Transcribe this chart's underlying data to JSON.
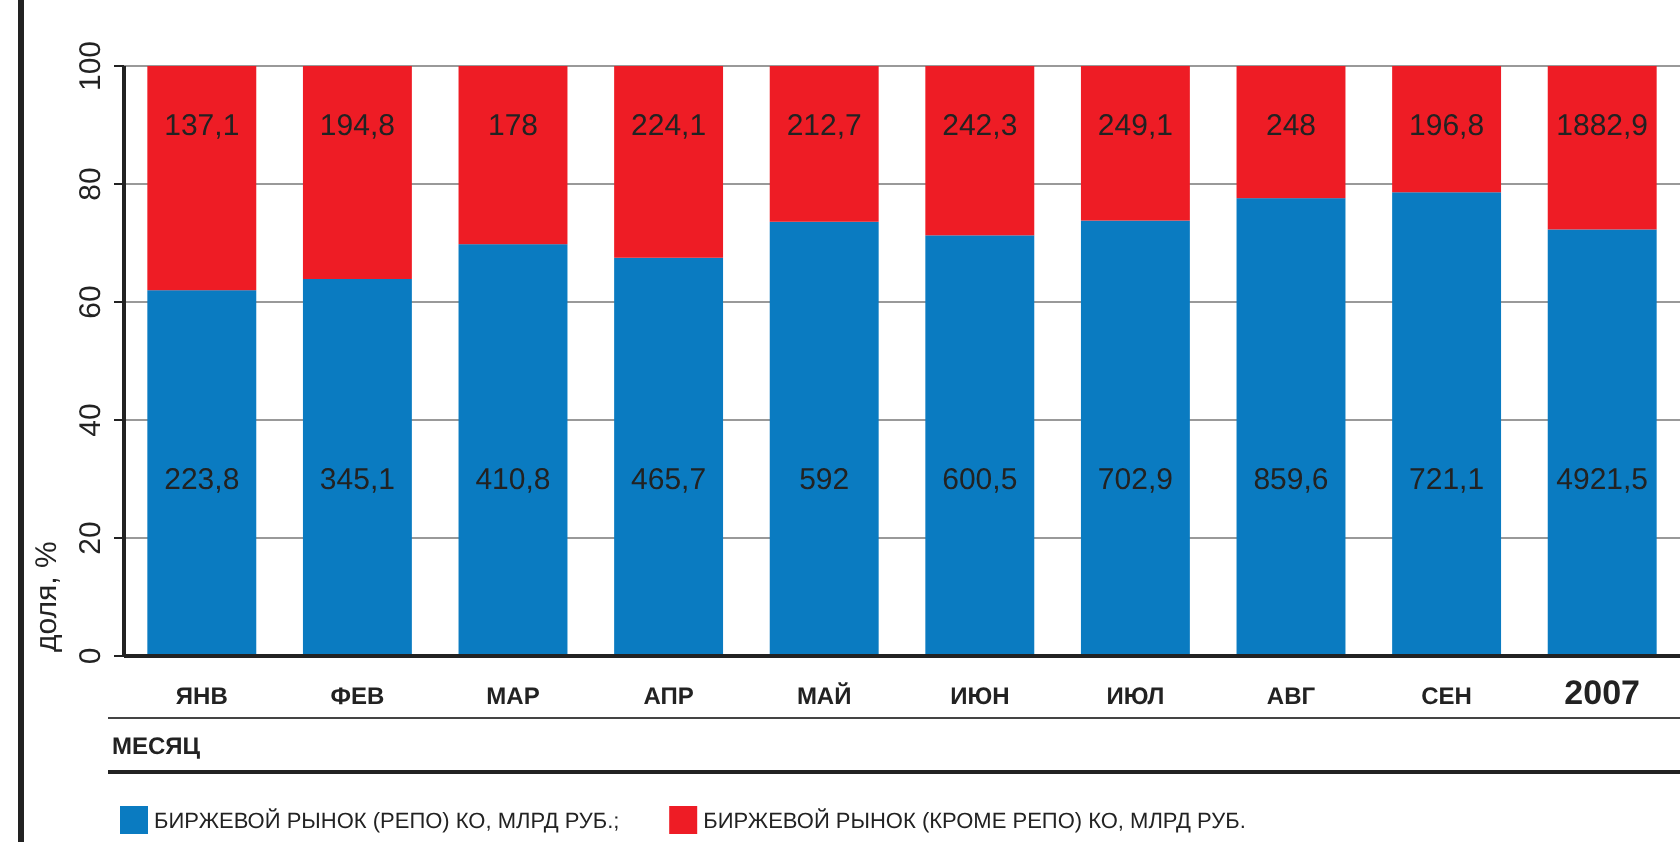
{
  "chart_data": {
    "type": "bar",
    "stacked": true,
    "xlabel": "МЕСЯЦ",
    "ylabel": "доля, %",
    "categories": [
      "ЯНВ",
      "ФЕВ",
      "МАР",
      "АПР",
      "МАЙ",
      "ИЮН",
      "ИЮЛ",
      "АВГ",
      "СЕН",
      "2007"
    ],
    "series": [
      {
        "name": "БИРЖЕВОЙ РЫНОК (РЕПО) КО, МЛРД РУБ.;",
        "color": "#0a7bc1",
        "values": [
          62.0,
          63.9,
          69.8,
          67.5,
          73.6,
          71.3,
          73.8,
          77.6,
          78.6,
          72.3
        ]
      },
      {
        "name": "БИРЖЕВОЙ РЫНОК (КРОМЕ РЕПО) КО, МЛРД РУБ.",
        "color": "#ee1c25",
        "values": [
          38.0,
          36.1,
          30.2,
          32.5,
          26.4,
          28.7,
          26.2,
          22.4,
          21.4,
          27.7
        ]
      }
    ],
    "annotations": [
      "223,8",
      "345,1",
      "410,8",
      "465,7",
      "592",
      "600,5",
      "702,9",
      "859,6",
      "721,1",
      "4921,5",
      "137,1",
      "194,8",
      "178",
      "224,1",
      "212,7",
      "242,3",
      "249,1",
      "248",
      "196,8",
      "1882,9"
    ],
    "ylim": [
      0,
      100
    ],
    "yticks": [
      0,
      20,
      40,
      60,
      80,
      100
    ],
    "grid": "y",
    "legend": "bottom"
  }
}
